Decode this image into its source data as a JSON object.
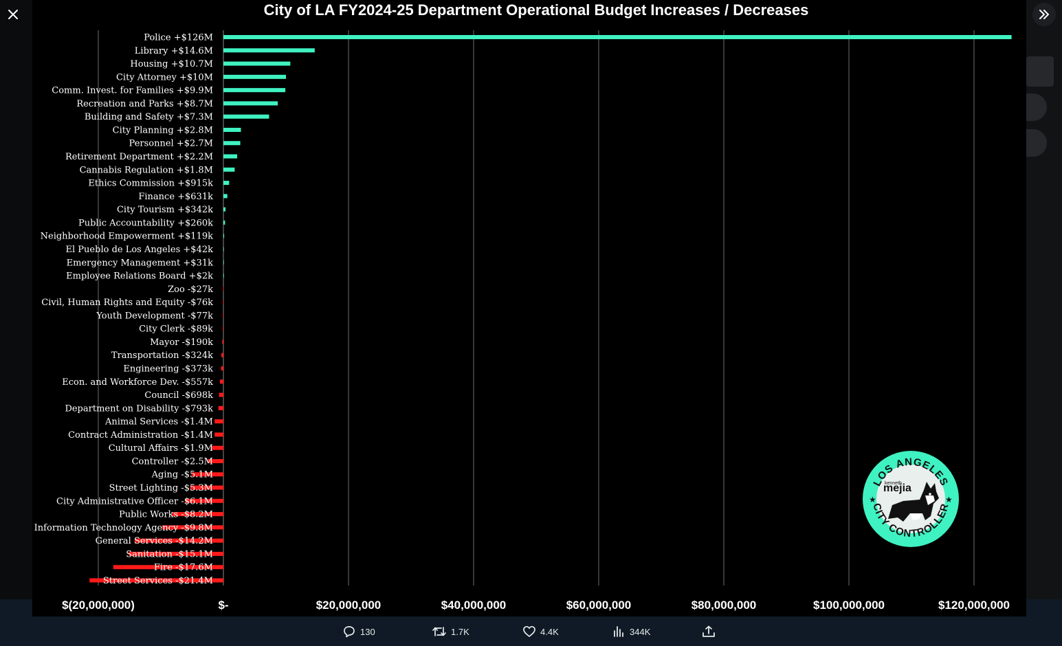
{
  "viewer": {
    "close_label": "Close",
    "expand_label": "Expand"
  },
  "tweet_actions": {
    "replies": "130",
    "reposts": "1.7K",
    "likes": "4.4K",
    "views": "344K"
  },
  "colors": {
    "increase": "#3ff2c1",
    "decrease": "#ff1a1a",
    "grid": "#6e6e6e",
    "background": "#000000"
  },
  "chart_data": {
    "type": "bar",
    "orientation": "horizontal",
    "title": "City of LA FY2024-25 Department Operational Budget Increases / Decreases",
    "xlabel": "",
    "ylabel": "",
    "xlim": [
      -20000000,
      126000000
    ],
    "grid": true,
    "x_ticks": [
      {
        "value": -20000000,
        "label": "$(20,000,000)"
      },
      {
        "value": 0,
        "label": "$-"
      },
      {
        "value": 20000000,
        "label": "$20,000,000"
      },
      {
        "value": 40000000,
        "label": "$40,000,000"
      },
      {
        "value": 60000000,
        "label": "$60,000,000"
      },
      {
        "value": 80000000,
        "label": "$80,000,000"
      },
      {
        "value": 100000000,
        "label": "$100,000,000"
      },
      {
        "value": 120000000,
        "label": "$120,000,000"
      }
    ],
    "categories": [
      "Police +$126M",
      "Library +$14.6M",
      "Housing +$10.7M",
      "City Attorney +$10M",
      "Comm. Invest. for Families +$9.9M",
      "Recreation and Parks +$8.7M",
      "Building and Safety +$7.3M",
      "City Planning +$2.8M",
      "Personnel +$2.7M",
      "Retirement Department +$2.2M",
      "Cannabis Regulation +$1.8M",
      "Ethics Commission +$915k",
      "Finance +$631k",
      "City Tourism +$342k",
      "Public Accountability +$260k",
      "Neighborhood Empowerment +$119k",
      "El Pueblo de Los Angeles +$42k",
      "Emergency Management +$31k",
      "Employee Relations Board +$2k",
      "Zoo -$27k",
      "Civil, Human Rights and Equity -$76k",
      "Youth Development -$77k",
      "City Clerk -$89k",
      "Mayor -$190k",
      "Transportation -$324k",
      "Engineering -$373k",
      "Econ. and Workforce Dev. -$557k",
      "Council -$698k",
      "Department on Disability -$793k",
      "Animal Services -$1.4M",
      "Contract Administration -$1.4M",
      "Cultural Affairs -$1.9M",
      "Controller -$2.5M",
      "Aging -$5.1M",
      "Street Lighting -$5.3M",
      "City Administrative Officer -$6.1M",
      "Public Works -$8.2M",
      "Information Technology Agency -$9.8M",
      "General Services -$14.2M",
      "Sanitation -$15.1M",
      "Fire -$17.6M",
      "Street Services -$21.4M"
    ],
    "values": [
      126000000,
      14600000,
      10700000,
      10000000,
      9900000,
      8700000,
      7300000,
      2800000,
      2700000,
      2200000,
      1800000,
      915000,
      631000,
      342000,
      260000,
      119000,
      42000,
      31000,
      2000,
      -27000,
      -76000,
      -77000,
      -89000,
      -190000,
      -324000,
      -373000,
      -557000,
      -698000,
      -793000,
      -1400000,
      -1400000,
      -1900000,
      -2500000,
      -5100000,
      -5300000,
      -6100000,
      -8200000,
      -9800000,
      -14200000,
      -15100000,
      -17600000,
      -21400000
    ]
  },
  "logo": {
    "top_text": "LOS ANGELES",
    "bottom_text": "CITY CONTROLLER",
    "name_small": "kenneth",
    "name_big": "mejia"
  }
}
